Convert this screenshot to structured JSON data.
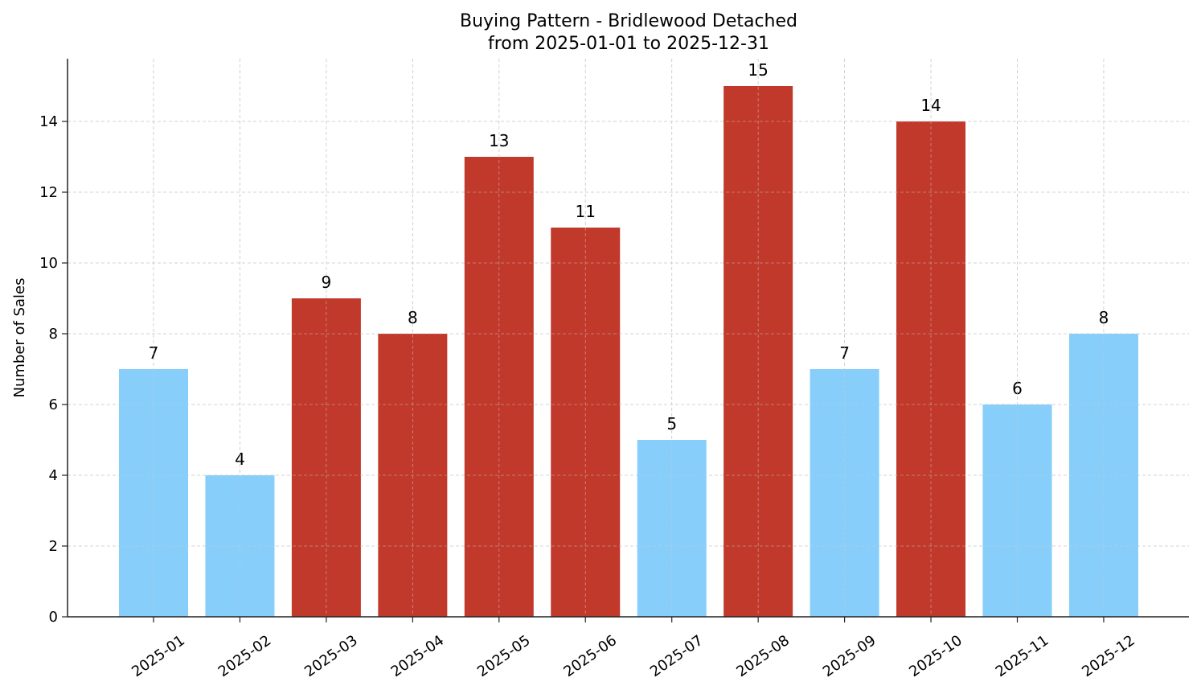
{
  "chart_data": {
    "type": "bar",
    "title": "Buying Pattern - Bridlewood Detached",
    "subtitle": "from 2025-01-01 to 2025-12-31",
    "xlabel": "",
    "ylabel": "Number of Sales",
    "categories": [
      "2025-01",
      "2025-02",
      "2025-03",
      "2025-04",
      "2025-05",
      "2025-06",
      "2025-07",
      "2025-08",
      "2025-09",
      "2025-10",
      "2025-11",
      "2025-12"
    ],
    "values": [
      7,
      4,
      9,
      8,
      13,
      11,
      5,
      15,
      7,
      14,
      6,
      8
    ],
    "bar_colors": [
      "#87cefa",
      "#87cefa",
      "#c0392b",
      "#c0392b",
      "#c0392b",
      "#c0392b",
      "#87cefa",
      "#c0392b",
      "#87cefa",
      "#c0392b",
      "#87cefa",
      "#87cefa"
    ],
    "ylim": [
      0,
      15.75
    ],
    "yticks": [
      0,
      2,
      4,
      6,
      8,
      10,
      12,
      14
    ],
    "grid": true,
    "legend": null,
    "colors": {
      "high": "#c0392b",
      "low": "#87cefa",
      "grid": "#cccccc",
      "axis": "#222222"
    }
  }
}
